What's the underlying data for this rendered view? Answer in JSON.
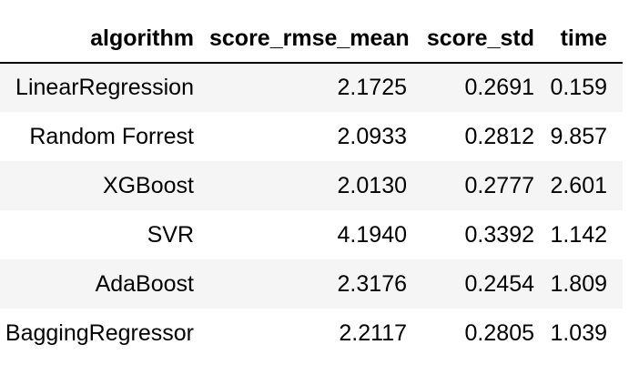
{
  "chart_data": {
    "type": "table",
    "columns": [
      "algorithm",
      "score_rmse_mean",
      "score_std",
      "time"
    ],
    "rows": [
      [
        "LinearRegression",
        "2.1725",
        "0.2691",
        "0.159"
      ],
      [
        "Random Forrest",
        "2.0933",
        "0.2812",
        "9.857"
      ],
      [
        "XGBoost",
        "2.0130",
        "0.2777",
        "2.601"
      ],
      [
        "SVR",
        "4.1940",
        "0.3392",
        "1.142"
      ],
      [
        "AdaBoost",
        "2.3176",
        "0.2454",
        "1.809"
      ],
      [
        "BaggingRegressor",
        "2.2117",
        "0.2805",
        "1.039"
      ]
    ],
    "layout": {
      "alignment": "all columns right-aligned",
      "striped_rows": "data rows 1, 3, 5 shaded",
      "header_divider": true,
      "grid": false,
      "legend": "none",
      "title": ""
    }
  },
  "colors": {
    "row_stripe": "#f5f5f5",
    "header_rule": "#000000",
    "text": "#000000",
    "background": "#ffffff"
  }
}
